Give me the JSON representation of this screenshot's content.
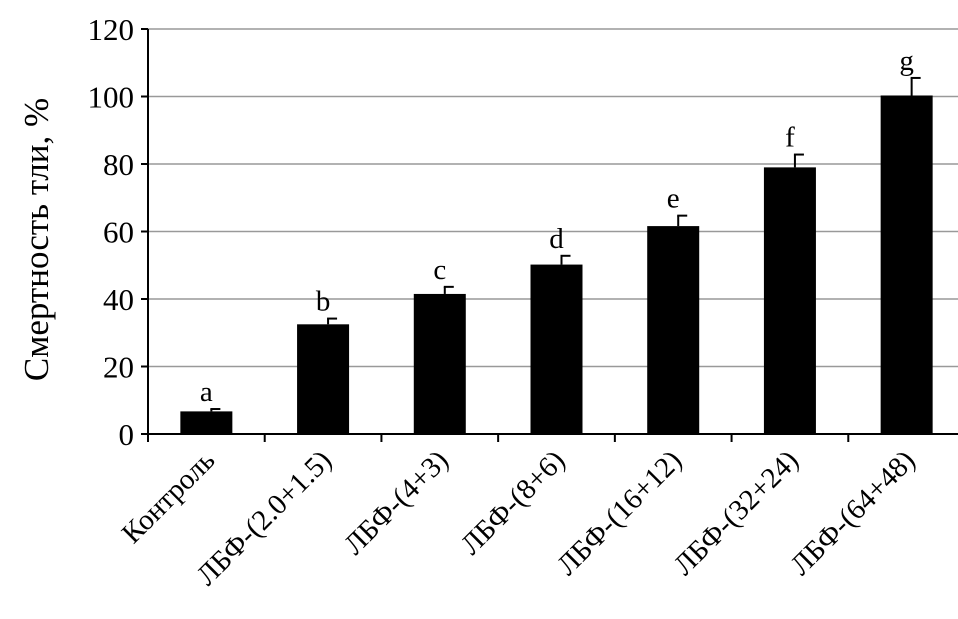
{
  "chart_data": {
    "type": "bar",
    "title": "",
    "xlabel": "",
    "ylabel": "Смертность тли, %",
    "ylim": [
      0,
      120
    ],
    "yticks": [
      0,
      20,
      40,
      60,
      80,
      100,
      120
    ],
    "grid": true,
    "legend": "none",
    "bar_color": "#000000",
    "grid_color": "#999999",
    "categories": [
      "Контроль",
      "ЛБФ-(2.0+1.5)",
      "ЛБФ-(4+3)",
      "ЛБФ-(8+6)",
      "ЛБФ-(16+12)",
      "ЛБФ-(32+24)",
      "ЛБФ-(64+48)"
    ],
    "values": [
      6.7,
      32.5,
      41.5,
      50.2,
      61.6,
      79,
      100.3
    ],
    "errors": [
      0.7,
      1.7,
      2.1,
      2.6,
      3.1,
      3.8,
      5.2
    ],
    "annotations": [
      "a",
      "b",
      "c",
      "d",
      "e",
      "f",
      "g"
    ]
  }
}
